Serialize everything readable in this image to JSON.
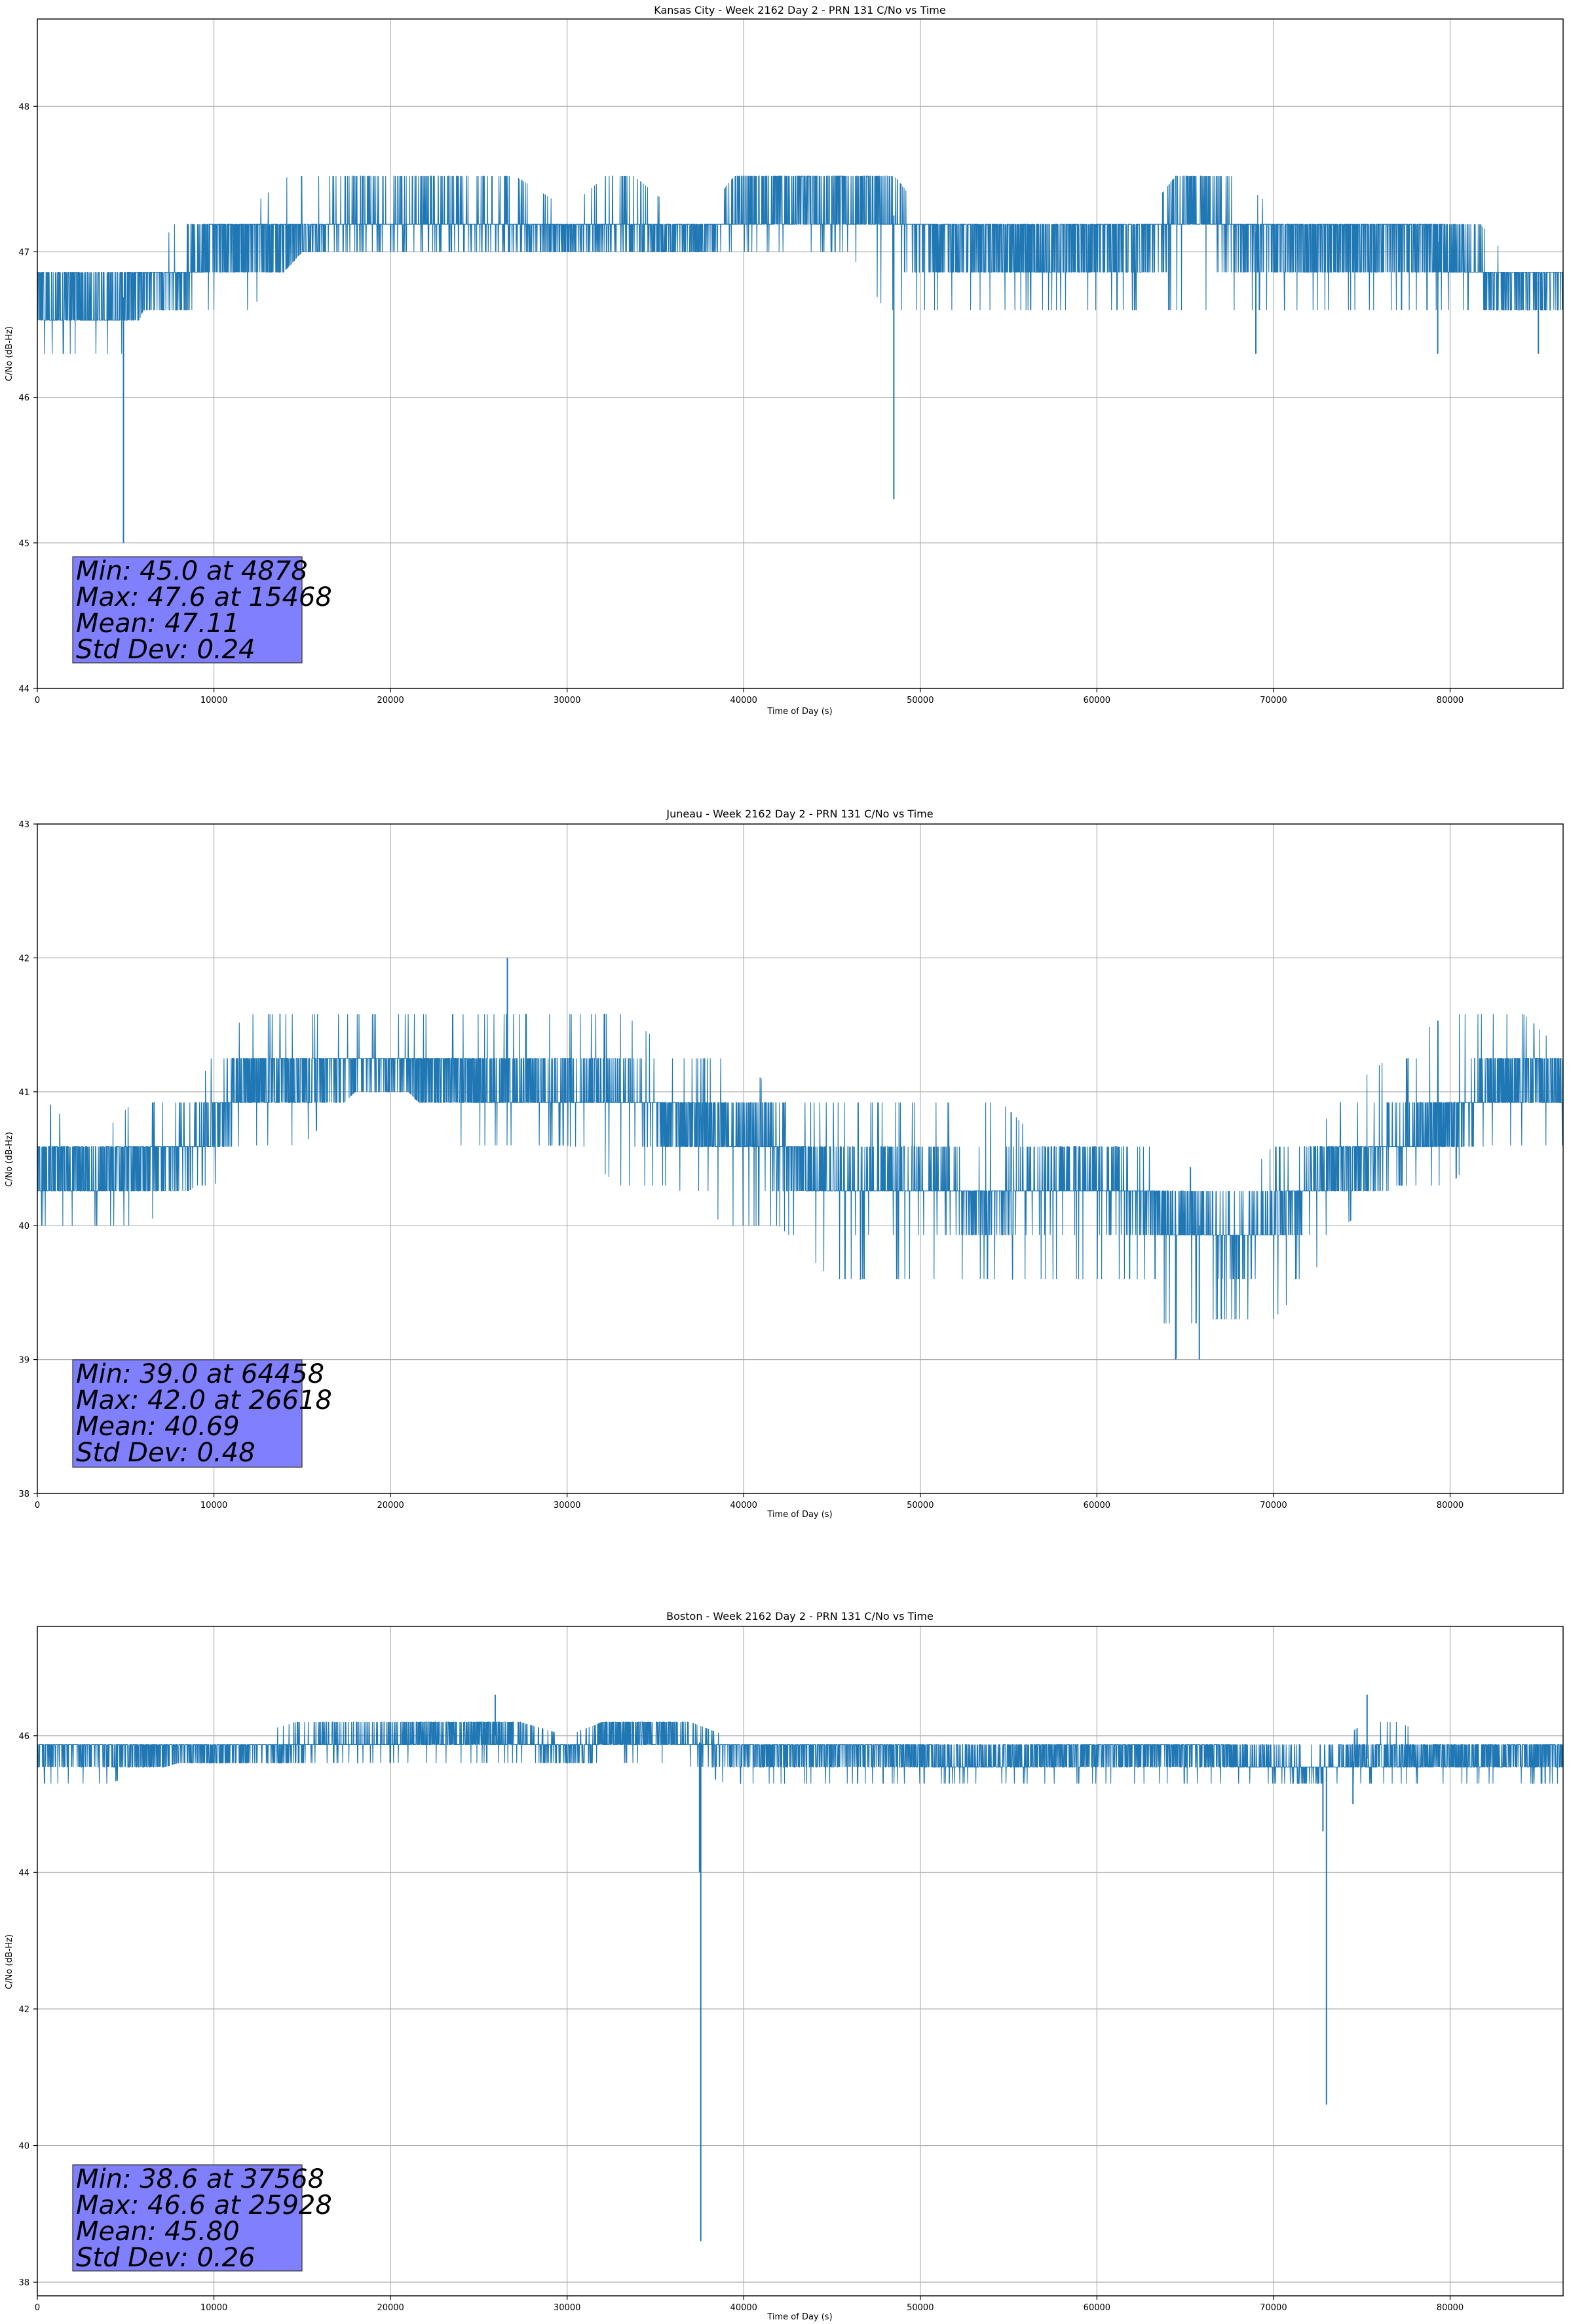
{
  "figure": {
    "line_color": "#1f77b4",
    "stats_box_color": "#8080ff",
    "grid": true
  },
  "chart_data": [
    {
      "type": "line",
      "title": "Kansas City - Week 2162 Day 2 - PRN 131 C/No vs Time",
      "xlabel": "Time of Day (s)",
      "ylabel": "C/No (dB-Hz)",
      "xlim": [
        0,
        86400
      ],
      "ylim": [
        44,
        48.6
      ],
      "xticks": [
        0,
        10000,
        20000,
        30000,
        40000,
        50000,
        60000,
        70000,
        80000
      ],
      "xtick_labels": [
        "0",
        "10000",
        "20000",
        "30000",
        "40000",
        "50000",
        "60000",
        "70000",
        "80000"
      ],
      "yticks": [
        44,
        45,
        46,
        47,
        48
      ],
      "ytick_labels": [
        "44",
        "45",
        "46",
        "47",
        "48"
      ],
      "series": [
        {
          "x": [
            0,
            1000,
            2000,
            3000,
            4000,
            5000,
            6000,
            7000,
            8000,
            9000,
            10000,
            12000,
            15000,
            18000,
            20000,
            23000,
            26000,
            30000,
            33000,
            36000,
            38000,
            40000,
            42000,
            44000,
            46000,
            48000,
            50000,
            53000,
            56000,
            60000,
            63000,
            65000,
            67000,
            70000,
            73000,
            76000,
            79000,
            81000,
            83000,
            86400
          ],
          "y": [
            46.7,
            46.6,
            46.7,
            46.6,
            46.6,
            46.7,
            46.8,
            46.8,
            46.8,
            46.9,
            47.1,
            47.1,
            47.1,
            47.2,
            47.2,
            47.2,
            47.2,
            47.1,
            47.2,
            47.1,
            47.1,
            47.3,
            47.3,
            47.3,
            47.3,
            47.3,
            47.1,
            47.1,
            47.0,
            47.1,
            47.1,
            47.3,
            47.2,
            47.1,
            47.1,
            47.1,
            47.1,
            46.9,
            46.8,
            46.8
          ],
          "low": [
            46.3,
            46.3,
            46.3,
            46.3,
            46.3,
            46.3,
            46.6,
            46.6,
            46.6,
            46.6,
            46.6,
            46.6,
            47.0,
            47.0,
            47.0,
            47.0,
            47.0,
            47.0,
            47.0,
            47.0,
            47.0,
            47.0,
            47.0,
            47.0,
            47.0,
            46.6,
            46.6,
            46.6,
            46.6,
            46.6,
            46.6,
            46.6,
            46.6,
            46.6,
            46.6,
            46.6,
            46.6,
            46.6,
            46.6,
            46.6
          ],
          "high": [
            47.0,
            47.0,
            47.0,
            47.0,
            47.0,
            47.0,
            47.0,
            47.0,
            47.3,
            47.3,
            47.3,
            47.3,
            47.6,
            47.6,
            47.6,
            47.6,
            47.6,
            47.3,
            47.6,
            47.3,
            47.3,
            47.6,
            47.6,
            47.6,
            47.6,
            47.6,
            47.3,
            47.3,
            47.3,
            47.3,
            47.3,
            47.6,
            47.6,
            47.3,
            47.3,
            47.3,
            47.3,
            47.3,
            47.0,
            47.0
          ]
        }
      ],
      "spikes": [
        {
          "x": 4878,
          "y": 45.0
        },
        {
          "x": 48500,
          "y": 45.3
        },
        {
          "x": 69000,
          "y": 46.3
        },
        {
          "x": 79300,
          "y": 46.3
        },
        {
          "x": 85000,
          "y": 46.3
        }
      ],
      "stats": {
        "min": "Min: 45.0 at 4878",
        "max": "Max: 47.6 at 15468",
        "mean": "Mean: 47.11",
        "std": "Std Dev: 0.24"
      }
    },
    {
      "type": "line",
      "title": "Juneau - Week 2162 Day 2 - PRN 131 C/No vs Time",
      "xlabel": "Time of Day (s)",
      "ylabel": "C/No (dB-Hz)",
      "xlim": [
        0,
        86400
      ],
      "ylim": [
        38,
        43
      ],
      "xticks": [
        0,
        10000,
        20000,
        30000,
        40000,
        50000,
        60000,
        70000,
        80000
      ],
      "xtick_labels": [
        "0",
        "10000",
        "20000",
        "30000",
        "40000",
        "50000",
        "60000",
        "70000",
        "80000"
      ],
      "yticks": [
        38,
        39,
        40,
        41,
        42,
        43
      ],
      "ytick_labels": [
        "38",
        "39",
        "40",
        "41",
        "42",
        "43"
      ],
      "series": [
        {
          "x": [
            0,
            3000,
            6000,
            9000,
            10000,
            12000,
            15000,
            18000,
            21000,
            24000,
            27000,
            30000,
            33000,
            36000,
            39000,
            42000,
            45000,
            48000,
            51000,
            54000,
            57000,
            60000,
            63000,
            64458,
            66000,
            68000,
            70000,
            72000,
            74000,
            77000,
            80000,
            82000,
            84000,
            86400
          ],
          "y": [
            40.4,
            40.4,
            40.5,
            40.6,
            40.8,
            41.1,
            41.1,
            41.2,
            41.2,
            41.1,
            41.0,
            41.0,
            41.0,
            40.8,
            40.7,
            40.6,
            40.3,
            40.3,
            40.3,
            40.2,
            40.3,
            40.3,
            40.2,
            40.0,
            40.0,
            39.9,
            40.0,
            40.3,
            40.5,
            40.6,
            40.8,
            41.0,
            41.1,
            41.0
          ],
          "low": [
            40.0,
            40.0,
            40.0,
            40.3,
            40.3,
            40.6,
            40.6,
            41.0,
            41.0,
            40.6,
            40.6,
            40.6,
            40.3,
            40.3,
            40.0,
            40.0,
            39.6,
            39.6,
            39.6,
            39.6,
            39.6,
            39.6,
            39.6,
            39.0,
            39.3,
            39.3,
            39.3,
            39.6,
            40.0,
            40.3,
            40.3,
            40.6,
            40.6,
            40.6
          ],
          "high": [
            41.0,
            40.6,
            41.0,
            41.0,
            41.3,
            41.6,
            41.6,
            41.6,
            41.6,
            41.6,
            41.6,
            41.6,
            41.6,
            41.3,
            41.3,
            41.0,
            41.0,
            41.0,
            41.0,
            41.0,
            40.6,
            40.6,
            40.6,
            40.6,
            40.3,
            40.3,
            40.6,
            40.6,
            41.0,
            41.3,
            41.6,
            41.6,
            41.6,
            41.3
          ]
        }
      ],
      "spikes": [
        {
          "x": 26618,
          "y": 42.0
        },
        {
          "x": 64458,
          "y": 39.0
        },
        {
          "x": 65800,
          "y": 39.0
        }
      ],
      "stats": {
        "min": "Min: 39.0 at 64458",
        "max": "Max: 42.0 at 26618",
        "mean": "Mean: 40.69",
        "std": "Std Dev: 0.48"
      }
    },
    {
      "type": "line",
      "title": "Boston - Week 2162 Day 2 - PRN 131 C/No vs Time",
      "xlabel": "Time of Day (s)",
      "ylabel": "C/No (dB-Hz)",
      "xlim": [
        0,
        86400
      ],
      "ylim": [
        37.8,
        47.6
      ],
      "xticks": [
        0,
        10000,
        20000,
        30000,
        40000,
        50000,
        60000,
        70000,
        80000
      ],
      "xtick_labels": [
        "0",
        "10000",
        "20000",
        "30000",
        "40000",
        "50000",
        "60000",
        "70000",
        "80000"
      ],
      "yticks": [
        38,
        40,
        42,
        44,
        46
      ],
      "ytick_labels": [
        "38",
        "40",
        "42",
        "44",
        "46"
      ],
      "series": [
        {
          "x": [
            0,
            4000,
            8000,
            12000,
            16000,
            20000,
            24000,
            26000,
            30000,
            33000,
            36000,
            39000,
            42000,
            45000,
            48000,
            51000,
            54000,
            57000,
            60000,
            63000,
            66000,
            69000,
            72000,
            74000,
            76000,
            79000,
            82000,
            86400
          ],
          "y": [
            45.8,
            45.8,
            45.8,
            45.8,
            45.9,
            45.9,
            46.0,
            46.0,
            45.8,
            46.0,
            46.0,
            45.8,
            45.8,
            45.8,
            45.8,
            45.7,
            45.6,
            45.7,
            45.8,
            45.8,
            45.8,
            45.6,
            45.5,
            45.6,
            45.7,
            45.7,
            45.7,
            45.8
          ],
          "low": [
            45.3,
            45.3,
            45.6,
            45.6,
            45.6,
            45.6,
            45.6,
            45.6,
            45.6,
            45.6,
            45.6,
            45.3,
            45.3,
            45.3,
            45.3,
            45.3,
            45.3,
            45.3,
            45.3,
            45.3,
            45.3,
            45.3,
            45.3,
            45.3,
            45.3,
            45.3,
            45.3,
            45.3
          ],
          "high": [
            46.0,
            46.0,
            46.0,
            46.0,
            46.3,
            46.3,
            46.3,
            46.3,
            46.0,
            46.3,
            46.3,
            46.0,
            46.0,
            46.0,
            46.0,
            46.0,
            46.0,
            46.0,
            46.0,
            46.0,
            46.0,
            46.0,
            46.0,
            46.0,
            46.3,
            46.0,
            46.0,
            46.0
          ]
        }
      ],
      "spikes": [
        {
          "x": 25928,
          "y": 46.6
        },
        {
          "x": 37568,
          "y": 38.6
        },
        {
          "x": 37500,
          "y": 44.0
        },
        {
          "x": 73000,
          "y": 40.6
        },
        {
          "x": 72800,
          "y": 44.6
        },
        {
          "x": 75300,
          "y": 46.6
        },
        {
          "x": 74500,
          "y": 45.0
        }
      ],
      "stats": {
        "min": "Min: 38.6 at 37568",
        "max": "Max: 46.6 at 25928",
        "mean": "Mean: 45.80",
        "std": "Std Dev: 0.26"
      }
    }
  ]
}
